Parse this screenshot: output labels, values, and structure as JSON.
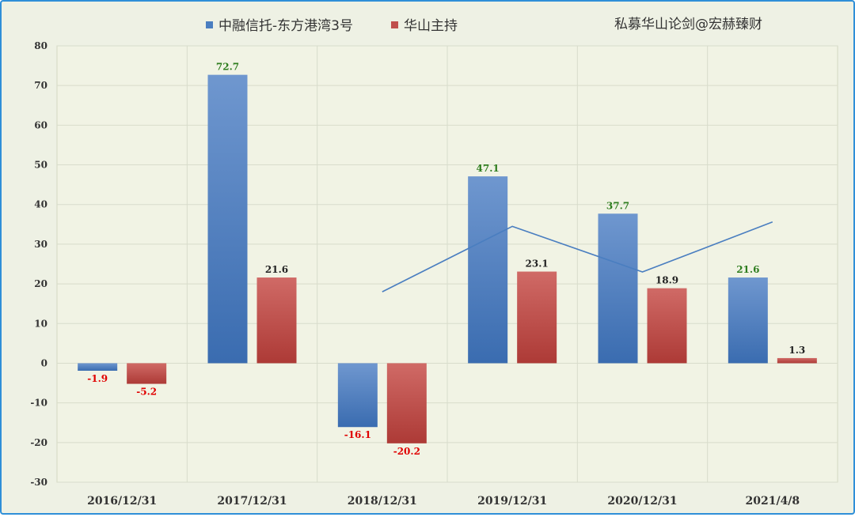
{
  "chart_data": {
    "type": "bar",
    "categories": [
      "2016/12/31",
      "2017/12/31",
      "2018/12/31",
      "2019/12/31",
      "2020/12/31",
      "2021/4/8"
    ],
    "series": [
      {
        "name": "中融信托-东方港湾3号",
        "values": [
          -1.9,
          72.7,
          -16.1,
          47.1,
          37.7,
          21.6
        ],
        "color": "#4a7ec0"
      },
      {
        "name": "华山主持",
        "values": [
          -5.2,
          21.6,
          -20.2,
          23.1,
          18.9,
          1.3
        ],
        "color": "#c0504d"
      }
    ],
    "line": {
      "color": "#4a7ec0",
      "values": [
        null,
        null,
        18,
        34.5,
        23,
        35.6
      ]
    },
    "ylim": [
      -30,
      80
    ],
    "yticks": [
      80,
      70,
      60,
      50,
      40,
      30,
      20,
      10,
      0,
      -10,
      -20,
      -30
    ],
    "grid": true,
    "legend": "top",
    "watermark": "私募华山论剑@宏赫臻财",
    "label_colors": {
      "positive_series1": "#2e7d1e",
      "negative": "#e00000",
      "positive_series2": "#222222"
    }
  }
}
